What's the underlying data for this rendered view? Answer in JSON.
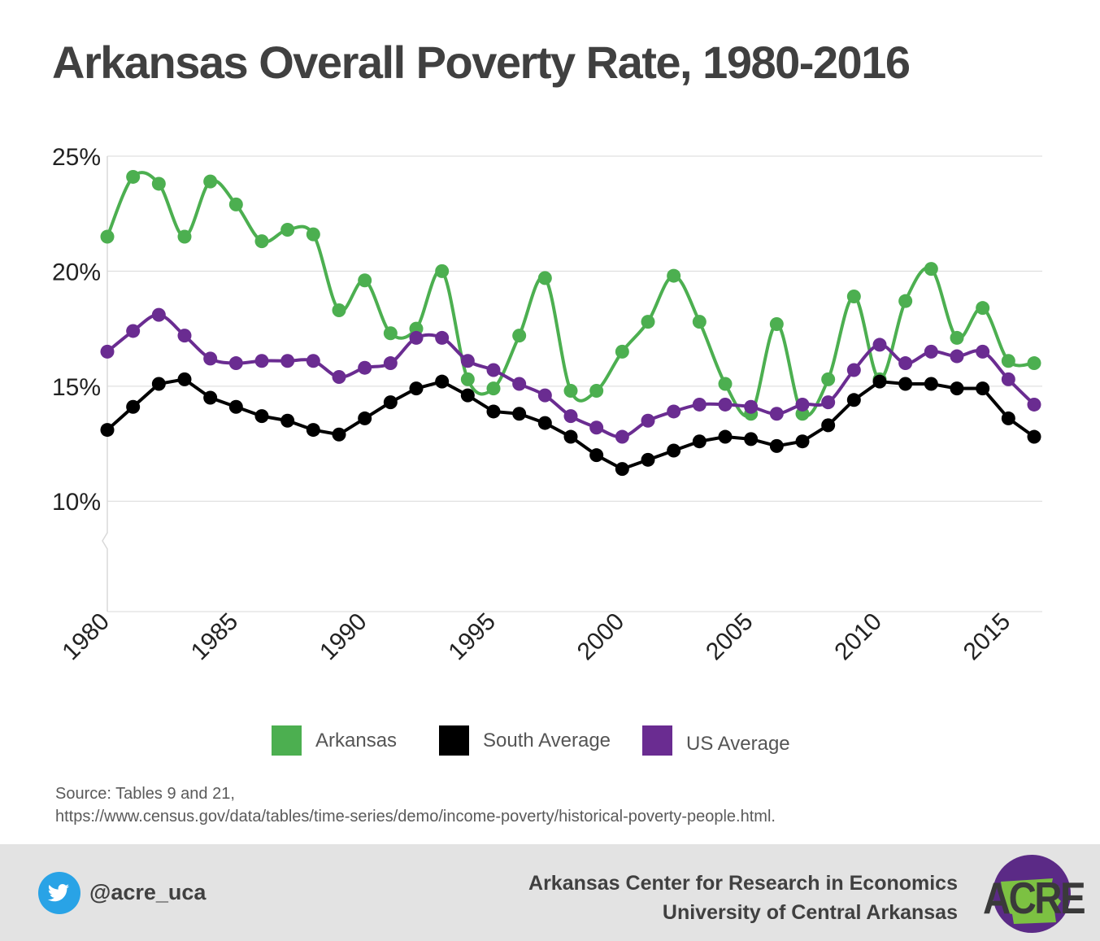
{
  "title": "Arkansas Overall Poverty Rate, 1980-2016",
  "chart_data": {
    "type": "line",
    "x": [
      1980,
      1981,
      1982,
      1983,
      1984,
      1985,
      1986,
      1987,
      1988,
      1989,
      1990,
      1991,
      1992,
      1993,
      1994,
      1995,
      1996,
      1997,
      1998,
      1999,
      2000,
      2001,
      2002,
      2003,
      2004,
      2005,
      2006,
      2007,
      2008,
      2009,
      2010,
      2011,
      2012,
      2013,
      2014,
      2015,
      2016
    ],
    "series": [
      {
        "name": "Arkansas",
        "color": "#4caf50",
        "values": [
          21.5,
          24.1,
          23.8,
          21.5,
          23.9,
          22.9,
          21.3,
          21.8,
          21.6,
          18.3,
          19.6,
          17.3,
          17.5,
          20.0,
          15.3,
          14.9,
          17.2,
          19.7,
          14.8,
          14.8,
          16.5,
          17.8,
          19.8,
          17.8,
          15.1,
          13.8,
          17.7,
          13.8,
          15.3,
          18.9,
          15.3,
          18.7,
          20.1,
          17.1,
          18.4,
          16.1,
          16.0
        ]
      },
      {
        "name": "South Average",
        "color": "#000000",
        "values": [
          13.1,
          14.1,
          15.1,
          15.3,
          14.5,
          14.1,
          13.7,
          13.5,
          13.1,
          12.9,
          13.6,
          14.3,
          14.9,
          15.2,
          14.6,
          13.9,
          13.8,
          13.4,
          12.8,
          12.0,
          11.4,
          11.8,
          12.2,
          12.6,
          12.8,
          12.7,
          12.4,
          12.6,
          13.3,
          14.4,
          15.2,
          15.1,
          15.1,
          14.9,
          14.9,
          13.6,
          12.8
        ]
      },
      {
        "name": "US Average",
        "color": "#6a2c91",
        "values": [
          16.5,
          17.4,
          18.1,
          17.2,
          16.2,
          16.0,
          16.1,
          16.1,
          16.1,
          15.4,
          15.8,
          16.0,
          17.1,
          17.1,
          16.1,
          15.7,
          15.1,
          14.6,
          13.7,
          13.2,
          12.8,
          13.5,
          13.9,
          14.2,
          14.2,
          14.1,
          13.8,
          14.2,
          14.3,
          15.7,
          16.8,
          16.0,
          16.5,
          16.3,
          16.5,
          15.3,
          14.2
        ]
      }
    ],
    "y_ticks": [
      "25%",
      "20%",
      "15%",
      "10%"
    ],
    "y_tick_values": [
      25,
      20,
      15,
      10
    ],
    "x_ticks": [
      "1980",
      "1985",
      "1990",
      "1995",
      "2000",
      "2005",
      "2010",
      "2015"
    ],
    "x_tick_values": [
      1980,
      1985,
      1990,
      1995,
      2000,
      2005,
      2010,
      2015
    ],
    "xlim": [
      1980,
      2016
    ],
    "ylim": [
      5.2,
      25
    ],
    "axis_break": true,
    "grid": "horizontal",
    "legend_position": "bottom"
  },
  "source": {
    "line1": "Source: Tables 9 and 21,",
    "line2": "https://www.census.gov/data/tables/time-series/demo/income-poverty/historical-poverty-people.html."
  },
  "footer": {
    "twitter_icon": "twitter-bird-icon",
    "twitter_handle": "@acre_uca",
    "org_line1": "Arkansas Center for Research in Economics",
    "org_line2": "University of Central Arkansas",
    "logo_text": "ACRE",
    "logo_colors": {
      "circle": "#5b2a86",
      "state": "#7cc142",
      "text": "#3a3a3a"
    }
  }
}
